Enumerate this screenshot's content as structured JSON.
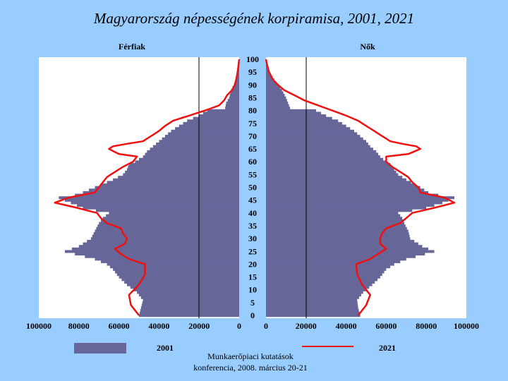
{
  "chart_data": {
    "type": "bar",
    "title": "Magyarország népességének korpiramisa, 2001, 2021",
    "left_label": "Férfiak",
    "right_label": "Nők",
    "age_ticks": [
      "100",
      "95",
      "90",
      "85",
      "80",
      "75",
      "70",
      "65",
      "60",
      "55",
      "50",
      "45",
      "40",
      "35",
      "30",
      "25",
      "20",
      "15",
      "10",
      "5",
      "0"
    ],
    "left_ticks": [
      "100000",
      "80000",
      "60000",
      "40000",
      "20000",
      "0"
    ],
    "right_ticks": [
      "0",
      "20000",
      "40000",
      "60000",
      "80000",
      "100000"
    ],
    "xlim": [
      0,
      100000
    ],
    "ylim": [
      0,
      100
    ],
    "series": [
      {
        "name": "2001",
        "color": "#666699",
        "males_key": [
          [
            0,
            50000
          ],
          [
            3,
            49000
          ],
          [
            6,
            48000
          ],
          [
            9,
            51000
          ],
          [
            12,
            56000
          ],
          [
            15,
            60000
          ],
          [
            18,
            63000
          ],
          [
            20,
            66000
          ],
          [
            22,
            72000
          ],
          [
            25,
            87000
          ],
          [
            27,
            80000
          ],
          [
            30,
            74000
          ],
          [
            33,
            72000
          ],
          [
            36,
            70000
          ],
          [
            38,
            68000
          ],
          [
            40,
            65000
          ],
          [
            42,
            78000
          ],
          [
            44,
            84000
          ],
          [
            46,
            90000
          ],
          [
            47,
            82000
          ],
          [
            48,
            78000
          ],
          [
            50,
            72000
          ],
          [
            53,
            63000
          ],
          [
            55,
            58000
          ],
          [
            57,
            56000
          ],
          [
            59,
            55000
          ],
          [
            60,
            52000
          ],
          [
            62,
            48000
          ],
          [
            64,
            46000
          ],
          [
            66,
            43000
          ],
          [
            68,
            40000
          ],
          [
            70,
            37000
          ],
          [
            72,
            34000
          ],
          [
            74,
            30000
          ],
          [
            76,
            26000
          ],
          [
            78,
            20000
          ],
          [
            80,
            16000
          ],
          [
            81,
            7000
          ],
          [
            83,
            6500
          ],
          [
            85,
            5000
          ],
          [
            88,
            4000
          ],
          [
            91,
            2000
          ],
          [
            94,
            900
          ],
          [
            97,
            300
          ],
          [
            100,
            0
          ]
        ],
        "females_key": [
          [
            0,
            47000
          ],
          [
            3,
            46000
          ],
          [
            6,
            45500
          ],
          [
            9,
            48500
          ],
          [
            12,
            53000
          ],
          [
            15,
            57000
          ],
          [
            18,
            60000
          ],
          [
            20,
            64000
          ],
          [
            22,
            70000
          ],
          [
            25,
            84000
          ],
          [
            27,
            78000
          ],
          [
            30,
            72000
          ],
          [
            33,
            71000
          ],
          [
            36,
            69000
          ],
          [
            38,
            68000
          ],
          [
            40,
            66000
          ],
          [
            42,
            80000
          ],
          [
            44,
            88000
          ],
          [
            46,
            94000
          ],
          [
            47,
            86000
          ],
          [
            48,
            81000
          ],
          [
            50,
            77000
          ],
          [
            53,
            70000
          ],
          [
            55,
            66000
          ],
          [
            57,
            64000
          ],
          [
            59,
            62000
          ],
          [
            60,
            60000
          ],
          [
            62,
            57000
          ],
          [
            64,
            55000
          ],
          [
            66,
            52000
          ],
          [
            68,
            50000
          ],
          [
            70,
            47000
          ],
          [
            72,
            44000
          ],
          [
            74,
            40000
          ],
          [
            76,
            36000
          ],
          [
            78,
            30000
          ],
          [
            80,
            25000
          ],
          [
            81,
            12000
          ],
          [
            83,
            11000
          ],
          [
            85,
            10000
          ],
          [
            88,
            8000
          ],
          [
            91,
            5000
          ],
          [
            94,
            2500
          ],
          [
            97,
            800
          ],
          [
            100,
            0
          ]
        ]
      },
      {
        "name": "2021",
        "color": "#ee1111",
        "males_key": [
          [
            0,
            50000
          ],
          [
            4,
            54000
          ],
          [
            8,
            55000
          ],
          [
            12,
            50000
          ],
          [
            16,
            47000
          ],
          [
            20,
            47000
          ],
          [
            22,
            55000
          ],
          [
            24,
            59000
          ],
          [
            26,
            62000
          ],
          [
            28,
            57000
          ],
          [
            30,
            56000
          ],
          [
            32,
            58000
          ],
          [
            34,
            59000
          ],
          [
            36,
            66000
          ],
          [
            38,
            69000
          ],
          [
            40,
            71000
          ],
          [
            42,
            81000
          ],
          [
            44,
            92000
          ],
          [
            46,
            85000
          ],
          [
            48,
            72000
          ],
          [
            50,
            70000
          ],
          [
            52,
            68000
          ],
          [
            54,
            66000
          ],
          [
            56,
            62000
          ],
          [
            58,
            58000
          ],
          [
            60,
            53000
          ],
          [
            62,
            51000
          ],
          [
            63,
            60000
          ],
          [
            65,
            65000
          ],
          [
            66,
            63000
          ],
          [
            67,
            56000
          ],
          [
            68,
            48000
          ],
          [
            70,
            44000
          ],
          [
            72,
            40000
          ],
          [
            74,
            37000
          ],
          [
            76,
            33000
          ],
          [
            78,
            25000
          ],
          [
            80,
            17000
          ],
          [
            82,
            10000
          ],
          [
            84,
            7500
          ],
          [
            86,
            6000
          ],
          [
            88,
            3500
          ],
          [
            90,
            2200
          ],
          [
            92,
            1500
          ],
          [
            95,
            800
          ],
          [
            98,
            300
          ],
          [
            100,
            0
          ]
        ],
        "females_key": [
          [
            0,
            46000
          ],
          [
            4,
            50000
          ],
          [
            8,
            52000
          ],
          [
            12,
            48000
          ],
          [
            16,
            45500
          ],
          [
            20,
            45000
          ],
          [
            22,
            52000
          ],
          [
            24,
            56000
          ],
          [
            26,
            60000
          ],
          [
            28,
            57000
          ],
          [
            30,
            57000
          ],
          [
            32,
            58000
          ],
          [
            34,
            60000
          ],
          [
            36,
            67000
          ],
          [
            38,
            70000
          ],
          [
            40,
            73000
          ],
          [
            42,
            84000
          ],
          [
            44,
            94000
          ],
          [
            46,
            89000
          ],
          [
            48,
            77000
          ],
          [
            50,
            76000
          ],
          [
            52,
            73000
          ],
          [
            54,
            71000
          ],
          [
            56,
            67000
          ],
          [
            58,
            63000
          ],
          [
            60,
            60000
          ],
          [
            62,
            60000
          ],
          [
            63,
            71000
          ],
          [
            65,
            77000
          ],
          [
            66,
            75000
          ],
          [
            67,
            68000
          ],
          [
            68,
            62000
          ],
          [
            70,
            58000
          ],
          [
            72,
            54000
          ],
          [
            74,
            50000
          ],
          [
            76,
            46000
          ],
          [
            78,
            40000
          ],
          [
            80,
            33000
          ],
          [
            82,
            26000
          ],
          [
            84,
            19000
          ],
          [
            86,
            14000
          ],
          [
            88,
            9000
          ],
          [
            90,
            6000
          ],
          [
            92,
            3500
          ],
          [
            95,
            1500
          ],
          [
            98,
            500
          ],
          [
            100,
            0
          ]
        ]
      }
    ],
    "legend_position": "bottom"
  },
  "footer": {
    "line1": "Munkaerőpiaci kutatások",
    "line2": "konferencia, 2008. március 20-21"
  }
}
